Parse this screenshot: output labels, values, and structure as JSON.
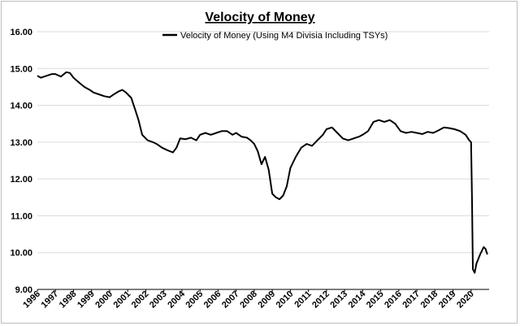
{
  "chart_data": {
    "type": "line",
    "title": "Velocity of Money",
    "xlabel": "",
    "ylabel": "",
    "ylim": [
      9,
      16
    ],
    "yticks": [
      "9.00",
      "10.00",
      "11.00",
      "12.00",
      "13.00",
      "14.00",
      "15.00",
      "16.00"
    ],
    "xticks": [
      "1996",
      "1997",
      "1998",
      "1999",
      "2000",
      "2001",
      "2002",
      "2003",
      "2004",
      "2005",
      "2006",
      "2007",
      "2008",
      "2009",
      "2010",
      "2011",
      "2012",
      "2013",
      "2014",
      "2015",
      "2016",
      "2017",
      "2018",
      "2019",
      "2020"
    ],
    "xlim": [
      1996.0,
      2021.0
    ],
    "grid": "horizontal",
    "legend": "top-center",
    "series": [
      {
        "name": "Velocity of Money (Using M4 Divisia Including TSYs)",
        "color": "#000000",
        "x": [
          1996.0,
          1996.2,
          1996.5,
          1996.8,
          1997.0,
          1997.3,
          1997.6,
          1997.8,
          1998.0,
          1998.3,
          1998.6,
          1998.9,
          1999.1,
          1999.4,
          1999.7,
          2000.0,
          2000.3,
          2000.5,
          2000.7,
          2000.9,
          2001.2,
          2001.4,
          2001.6,
          2001.8,
          2002.1,
          2002.4,
          2002.6,
          2002.9,
          2003.2,
          2003.5,
          2003.7,
          2003.9,
          2004.2,
          2004.5,
          2004.8,
          2005.0,
          2005.3,
          2005.6,
          2005.9,
          2006.2,
          2006.5,
          2006.8,
          2007.0,
          2007.3,
          2007.6,
          2007.8,
          2008.0,
          2008.2,
          2008.4,
          2008.6,
          2008.8,
          2009.0,
          2009.2,
          2009.4,
          2009.6,
          2009.8,
          2010.0,
          2010.3,
          2010.6,
          2010.9,
          2011.2,
          2011.5,
          2011.8,
          2012.0,
          2012.3,
          2012.6,
          2012.9,
          2013.2,
          2013.5,
          2013.8,
          2014.0,
          2014.3,
          2014.6,
          2014.9,
          2015.2,
          2015.5,
          2015.8,
          2016.1,
          2016.4,
          2016.7,
          2017.0,
          2017.3,
          2017.6,
          2017.9,
          2018.2,
          2018.5,
          2018.8,
          2019.1,
          2019.4,
          2019.7,
          2019.9,
          2020.0,
          2020.05,
          2020.1,
          2020.2,
          2020.3,
          2020.5,
          2020.7,
          2020.8,
          2020.9
        ],
        "values": [
          14.8,
          14.75,
          14.8,
          14.85,
          14.85,
          14.78,
          14.9,
          14.88,
          14.75,
          14.62,
          14.5,
          14.42,
          14.35,
          14.3,
          14.25,
          14.22,
          14.32,
          14.38,
          14.42,
          14.35,
          14.2,
          13.9,
          13.6,
          13.2,
          13.05,
          13.0,
          12.95,
          12.85,
          12.78,
          12.72,
          12.85,
          13.1,
          13.08,
          13.12,
          13.05,
          13.2,
          13.25,
          13.2,
          13.25,
          13.3,
          13.3,
          13.2,
          13.25,
          13.15,
          13.12,
          13.05,
          12.95,
          12.75,
          12.4,
          12.6,
          12.25,
          11.6,
          11.5,
          11.45,
          11.55,
          11.8,
          12.3,
          12.6,
          12.85,
          12.95,
          12.9,
          13.05,
          13.2,
          13.35,
          13.4,
          13.25,
          13.1,
          13.05,
          13.1,
          13.15,
          13.2,
          13.3,
          13.55,
          13.6,
          13.55,
          13.6,
          13.5,
          13.3,
          13.25,
          13.28,
          13.25,
          13.22,
          13.28,
          13.25,
          13.32,
          13.4,
          13.38,
          13.35,
          13.3,
          13.2,
          13.05,
          13.0,
          11.5,
          9.55,
          9.45,
          9.7,
          9.95,
          10.15,
          10.1,
          9.95
        ]
      }
    ]
  }
}
